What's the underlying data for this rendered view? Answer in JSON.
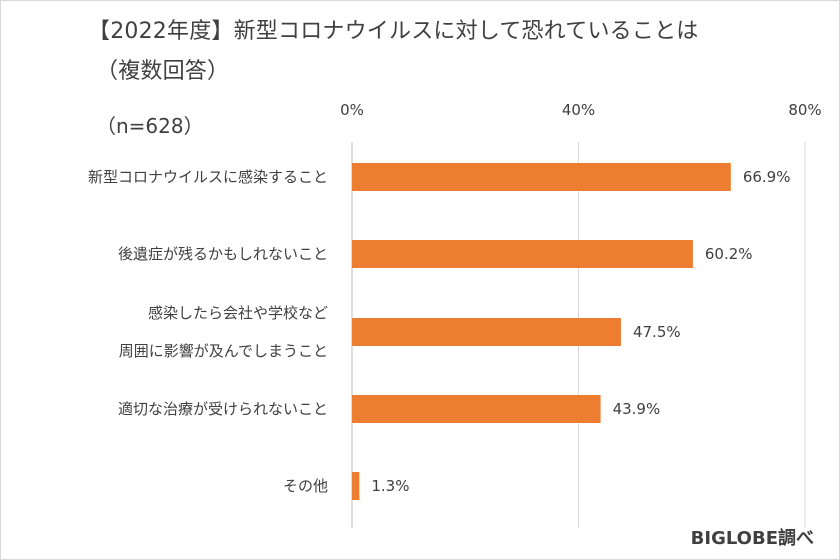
{
  "chart_data": {
    "type": "bar",
    "orientation": "horizontal",
    "title_line1": "【2022年度】新型コロナウイルスに対して恐れていることは",
    "title_line2": "（複数回答）",
    "sample_size": "（n=628）",
    "categories": [
      [
        "新型コロナウイルスに感染すること"
      ],
      [
        "後遺症が残るかもしれないこと"
      ],
      [
        "感染したら会社や学校など",
        "周囲に影響が及んでしまうこと"
      ],
      [
        "適切な治療が受けられないこと"
      ],
      [
        "その他"
      ]
    ],
    "values": [
      66.9,
      60.2,
      47.5,
      43.9,
      1.3
    ],
    "value_labels": [
      "66.9%",
      "60.2%",
      "47.5%",
      "43.9%",
      "1.3%"
    ],
    "x_ticks": [
      0,
      40,
      80
    ],
    "x_tick_labels": [
      "0%",
      "40%",
      "80%"
    ],
    "xlim": [
      0,
      80
    ],
    "bar_color": "#ED7D31",
    "grid": true,
    "source": "BIGLOBE調べ"
  }
}
